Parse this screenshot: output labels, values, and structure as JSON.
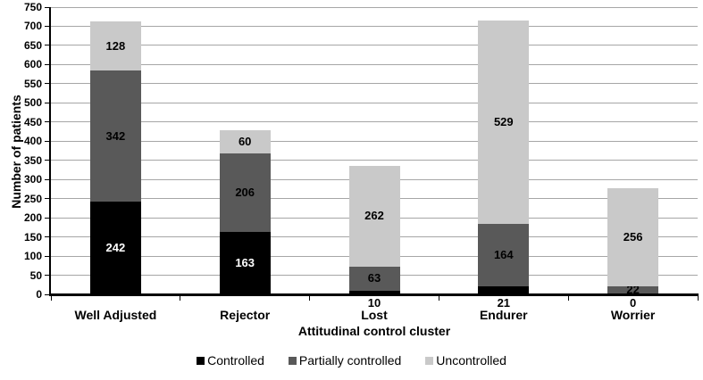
{
  "chart_data": {
    "type": "bar",
    "stacked": true,
    "xlabel": "Attitudinal control cluster",
    "ylabel": "Number of patients",
    "categories": [
      "Well Adjusted",
      "Rejector",
      "Lost",
      "Endurer",
      "Worrier"
    ],
    "series": [
      {
        "name": "Controlled",
        "color": "#000000",
        "label_color": "#ffffff",
        "values": [
          242,
          163,
          10,
          21,
          0
        ]
      },
      {
        "name": "Partially controlled",
        "color": "#595959",
        "label_color": "#000000",
        "values": [
          342,
          206,
          63,
          164,
          22
        ]
      },
      {
        "name": "Uncontrolled",
        "color": "#c9c9c9",
        "label_color": "#000000",
        "values": [
          128,
          60,
          262,
          529,
          256
        ]
      }
    ],
    "totals": [
      712,
      429,
      335,
      714,
      278
    ],
    "ylim": [
      0,
      750
    ],
    "ytick_step": 50,
    "grid": true,
    "legend_position": "bottom"
  },
  "style": {
    "gridline_color": "#a6a6a6",
    "axis_color": "#000000",
    "background": "#ffffff"
  }
}
